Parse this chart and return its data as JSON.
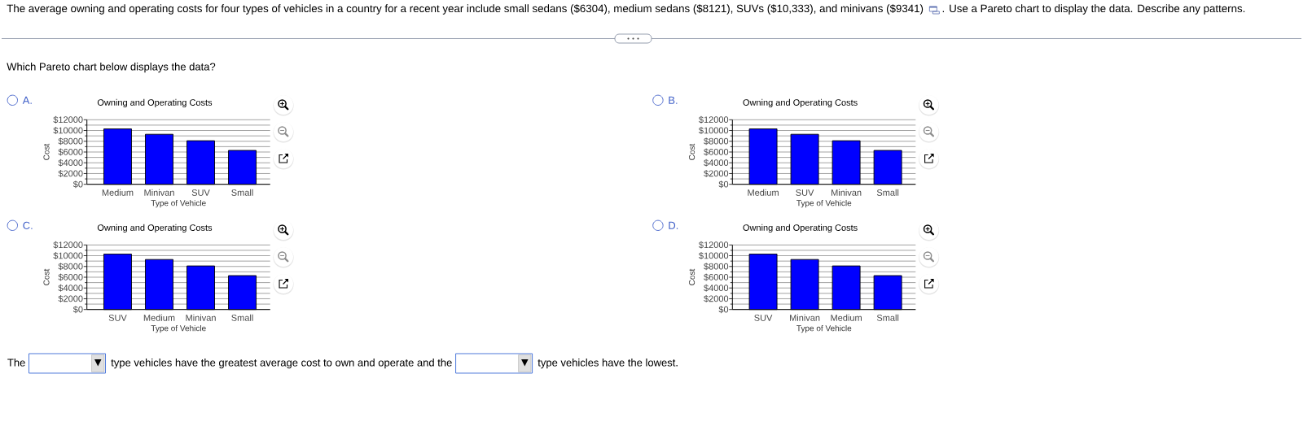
{
  "chart_data": [
    {
      "type": "other",
      "title": "The average owning and operating costs for four types of vehicles in a country for a recent year include small sedans ($6304), medium sedans ($8121), SUVs ($10,333), and minivans ($9341)",
      "annotations": [
        ". Use a Pareto chart to display the data. Describe any patterns.",
        "Which Pareto chart below displays the data?",
        "The",
        "type vehicles have the greatest average cost to own and operate and the",
        "type vehicles have the lowest."
      ]
    },
    {
      "type": "bar",
      "title": "Owning and Operating Costs",
      "xlabel": "Type of Vehicle",
      "ylabel": "Cost",
      "annotations": [
        "A."
      ],
      "categories": [
        "Medium",
        "Minivan",
        "SUV",
        "Small"
      ],
      "values": [
        10300,
        9300,
        8100,
        6300
      ],
      "color": "#0000ff",
      "ylim": [
        0,
        12000
      ],
      "yticks": [
        {
          "value": 0,
          "label": "$0"
        },
        {
          "value": 1000,
          "label": null
        },
        {
          "value": 2000,
          "label": "$2000"
        },
        {
          "value": 3000,
          "label": null
        },
        {
          "value": 4000,
          "label": "$4000"
        },
        {
          "value": 5000,
          "label": null
        },
        {
          "value": 6000,
          "label": "$6000"
        },
        {
          "value": 7000,
          "label": null
        },
        {
          "value": 8000,
          "label": "$8000"
        },
        {
          "value": 9000,
          "label": null
        },
        {
          "value": 10000,
          "label": "$10000"
        },
        {
          "value": 11000,
          "label": null
        },
        {
          "value": 12000,
          "label": "$12000"
        }
      ],
      "grid": "y"
    },
    {
      "type": "bar",
      "title": "Owning and Operating Costs",
      "xlabel": "Type of Vehicle",
      "ylabel": "Cost",
      "annotations": [
        "B."
      ],
      "categories": [
        "Medium",
        "SUV",
        "Minivan",
        "Small"
      ],
      "values": [
        10300,
        9300,
        8100,
        6300
      ],
      "color": "#0000ff",
      "ylim": [
        0,
        12000
      ],
      "yticks": [
        {
          "value": 0,
          "label": "$0"
        },
        {
          "value": 1000,
          "label": null
        },
        {
          "value": 2000,
          "label": "$2000"
        },
        {
          "value": 3000,
          "label": null
        },
        {
          "value": 4000,
          "label": "$4000"
        },
        {
          "value": 5000,
          "label": null
        },
        {
          "value": 6000,
          "label": "$6000"
        },
        {
          "value": 7000,
          "label": null
        },
        {
          "value": 8000,
          "label": "$8000"
        },
        {
          "value": 9000,
          "label": null
        },
        {
          "value": 10000,
          "label": "$10000"
        },
        {
          "value": 11000,
          "label": null
        },
        {
          "value": 12000,
          "label": "$12000"
        }
      ],
      "grid": "y"
    },
    {
      "type": "bar",
      "title": "Owning and Operating Costs",
      "xlabel": "Type of Vehicle",
      "ylabel": "Cost",
      "annotations": [
        "C."
      ],
      "categories": [
        "SUV",
        "Medium",
        "Minivan",
        "Small"
      ],
      "values": [
        10300,
        9300,
        8100,
        6300
      ],
      "color": "#0000ff",
      "ylim": [
        0,
        12000
      ],
      "yticks": [
        {
          "value": 0,
          "label": "$0"
        },
        {
          "value": 1000,
          "label": null
        },
        {
          "value": 2000,
          "label": "$2000"
        },
        {
          "value": 3000,
          "label": null
        },
        {
          "value": 4000,
          "label": "$4000"
        },
        {
          "value": 5000,
          "label": null
        },
        {
          "value": 6000,
          "label": "$6000"
        },
        {
          "value": 7000,
          "label": null
        },
        {
          "value": 8000,
          "label": "$8000"
        },
        {
          "value": 9000,
          "label": null
        },
        {
          "value": 10000,
          "label": "$10000"
        },
        {
          "value": 11000,
          "label": null
        },
        {
          "value": 12000,
          "label": "$12000"
        }
      ],
      "grid": "y"
    },
    {
      "type": "bar",
      "title": "Owning and Operating Costs",
      "xlabel": "Type of Vehicle",
      "ylabel": "Cost",
      "annotations": [
        "D."
      ],
      "categories": [
        "SUV",
        "Minivan",
        "Medium",
        "Small"
      ],
      "values": [
        10300,
        9300,
        8100,
        6300
      ],
      "color": "#0000ff",
      "ylim": [
        0,
        12000
      ],
      "yticks": [
        {
          "value": 0,
          "label": "$0"
        },
        {
          "value": 1000,
          "label": null
        },
        {
          "value": 2000,
          "label": "$2000"
        },
        {
          "value": 3000,
          "label": null
        },
        {
          "value": 4000,
          "label": "$4000"
        },
        {
          "value": 5000,
          "label": null
        },
        {
          "value": 6000,
          "label": "$6000"
        },
        {
          "value": 7000,
          "label": null
        },
        {
          "value": 8000,
          "label": "$8000"
        },
        {
          "value": 9000,
          "label": null
        },
        {
          "value": 10000,
          "label": "$10000"
        },
        {
          "value": 11000,
          "label": null
        },
        {
          "value": 12000,
          "label": "$12000"
        }
      ],
      "grid": "y"
    }
  ]
}
